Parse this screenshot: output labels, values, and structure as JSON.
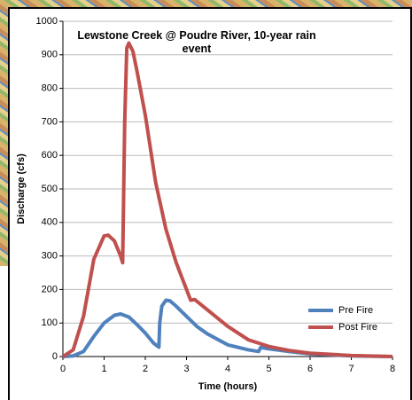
{
  "chart_data": {
    "type": "line",
    "title": "Lewstone Creek @ Poudre River, 10-year rain event",
    "x_label": "Time (hours)",
    "y_label": "Discharge (cfs)",
    "xlim": [
      0,
      8
    ],
    "xticks": [
      0,
      1,
      2,
      3,
      4,
      5,
      6,
      7,
      8
    ],
    "ylim": [
      0,
      1000
    ],
    "yticks": [
      0,
      100,
      200,
      300,
      400,
      500,
      600,
      700,
      800,
      900,
      1000
    ],
    "grid": true,
    "legend": "lower right",
    "series": [
      {
        "name": "Pre Fire",
        "color": "#4f81bd",
        "x": [
          0,
          0.25,
          0.5,
          0.75,
          1,
          1.25,
          1.4,
          1.6,
          1.8,
          2,
          2.2,
          2.33,
          2.35,
          2.4,
          2.5,
          2.6,
          2.75,
          3,
          3.25,
          3.5,
          4,
          4.5,
          4.75,
          4.8,
          5,
          5.5,
          6,
          7,
          8
        ],
        "values": [
          0,
          2,
          15,
          60,
          100,
          123,
          127,
          118,
          95,
          70,
          40,
          28,
          100,
          150,
          168,
          166,
          150,
          120,
          90,
          68,
          35,
          20,
          15,
          27,
          23,
          15,
          8,
          2,
          0
        ]
      },
      {
        "name": "Post Fire",
        "color": "#c0504d",
        "x": [
          0,
          0.25,
          0.5,
          0.75,
          1,
          1.1,
          1.25,
          1.4,
          1.45,
          1.5,
          1.55,
          1.6,
          1.7,
          1.8,
          2,
          2.25,
          2.5,
          2.75,
          3,
          3.1,
          3.2,
          3.5,
          4,
          4.5,
          5,
          5.5,
          6,
          7,
          8
        ],
        "values": [
          0,
          20,
          120,
          290,
          360,
          362,
          345,
          300,
          280,
          700,
          920,
          935,
          910,
          850,
          720,
          520,
          380,
          280,
          200,
          168,
          170,
          140,
          90,
          50,
          30,
          18,
          10,
          3,
          0
        ]
      }
    ]
  }
}
